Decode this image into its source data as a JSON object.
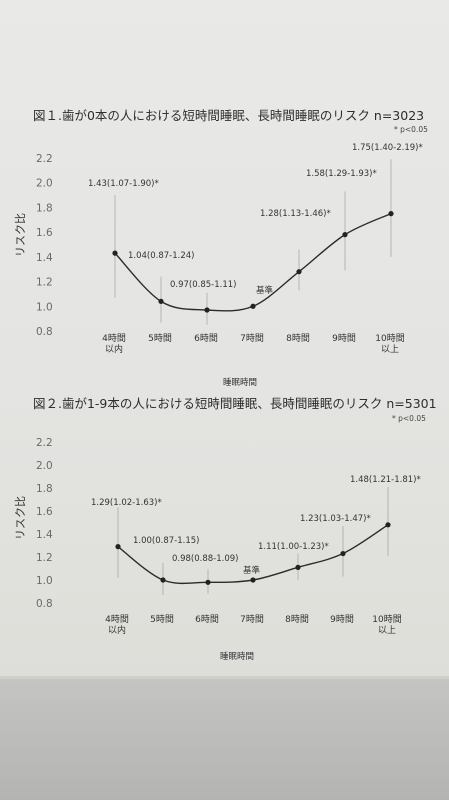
{
  "chart_data": [
    {
      "type": "line",
      "title": "図１.歯が0本の人における短時間睡眠、長時間睡眠のリスク n=3023",
      "note": "* p<0.05",
      "ylabel": "リスク比",
      "xlabel": "睡眠時間",
      "ylim": [
        0.8,
        2.2
      ],
      "yticks": [
        "2.2",
        "2.0",
        "1.8",
        "1.6",
        "1.4",
        "1.2",
        "1.0",
        "0.8"
      ],
      "categories": [
        "4時間\n以内",
        "5時間",
        "6時間",
        "7時間",
        "8時間",
        "9時間",
        "10時間\n以上"
      ],
      "values": [
        1.43,
        1.04,
        0.97,
        1.0,
        1.28,
        1.58,
        1.75
      ],
      "ci_low": [
        1.07,
        0.87,
        0.85,
        null,
        1.13,
        1.29,
        1.4
      ],
      "ci_high": [
        1.9,
        1.24,
        1.11,
        null,
        1.46,
        1.93,
        2.19
      ],
      "labels": [
        "1.43(1.07-1.90)*",
        "1.04(0.87-1.24)",
        "0.97(0.85-1.11)",
        "",
        "1.28(1.13-1.46)*",
        "1.58(1.29-1.93)*",
        "1.75(1.40-2.19)*"
      ],
      "baseline_label": "基準",
      "grid": false
    },
    {
      "type": "line",
      "title": "図２.歯が1-9本の人における短時間睡眠、長時間睡眠のリスク n=5301",
      "note": "* p<0.05",
      "ylabel": "リスク比",
      "xlabel": "睡眠時間",
      "ylim": [
        0.8,
        2.2
      ],
      "yticks": [
        "2.2",
        "2.0",
        "1.8",
        "1.6",
        "1.4",
        "1.2",
        "1.0",
        "0.8"
      ],
      "categories": [
        "4時間\n以内",
        "5時間",
        "6時間",
        "7時間",
        "8時間",
        "9時間",
        "10時間\n以上"
      ],
      "values": [
        1.29,
        1.0,
        0.98,
        1.0,
        1.11,
        1.23,
        1.48
      ],
      "ci_low": [
        1.02,
        0.87,
        0.88,
        null,
        1.0,
        1.03,
        1.21
      ],
      "ci_high": [
        1.63,
        1.15,
        1.09,
        null,
        1.23,
        1.47,
        1.81
      ],
      "labels": [
        "1.29(1.02-1.63)*",
        "1.00(0.87-1.15)",
        "0.98(0.88-1.09)",
        "",
        "1.11(1.00-1.23)*",
        "1.23(1.03-1.47)*",
        "1.48(1.21-1.81)*"
      ],
      "baseline_label": "基準",
      "grid": false
    }
  ]
}
